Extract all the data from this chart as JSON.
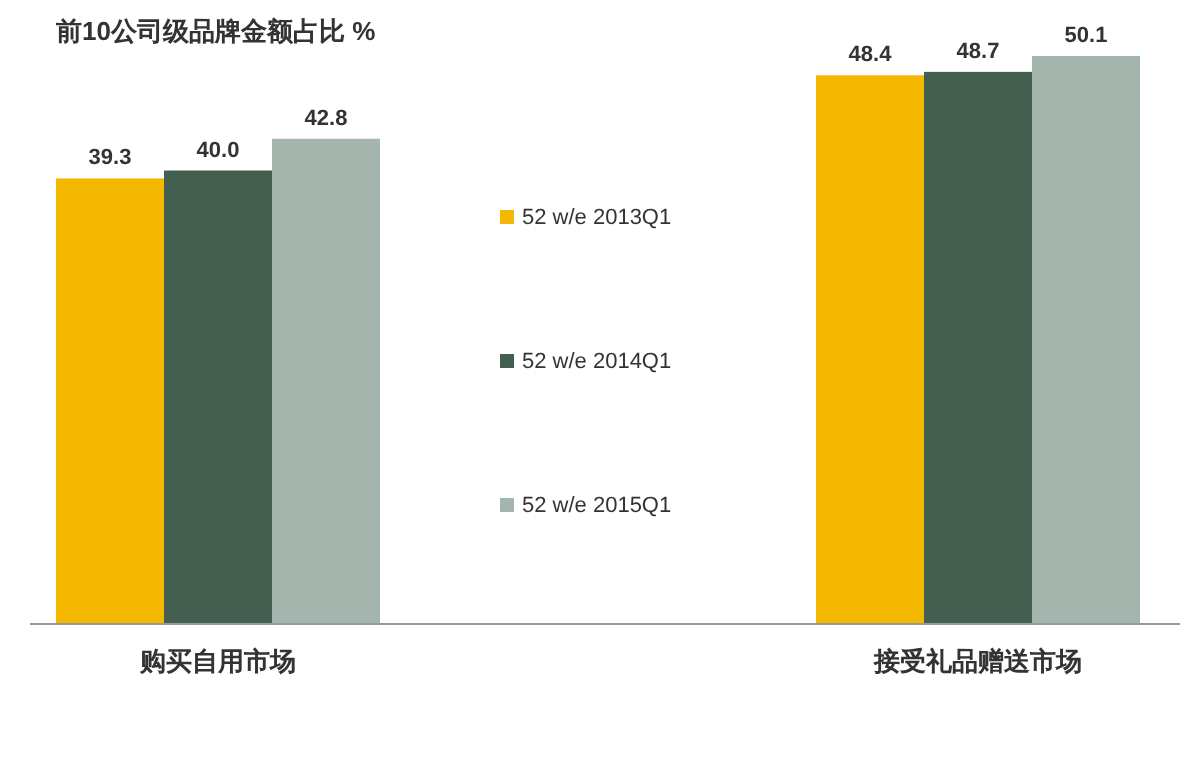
{
  "chart_data": {
    "type": "bar",
    "title": "前10公司级品牌金额占比 %",
    "categories": [
      "购买自用市场",
      "接受礼品赠送市场"
    ],
    "series": [
      {
        "name": "52 w/e 2013Q1",
        "color": "#f5b800",
        "values": [
          39.3,
          48.4
        ],
        "value_labels": [
          "39.3",
          "48.4"
        ]
      },
      {
        "name": "52 w/e 2014Q1",
        "color": "#445e4f",
        "values": [
          40.0,
          48.7
        ],
        "value_labels": [
          "40.0",
          "48.7"
        ]
      },
      {
        "name": "52 w/e 2015Q1",
        "color": "#a3b5ac",
        "values": [
          42.8,
          50.1
        ],
        "value_labels": [
          "42.8",
          "50.1"
        ]
      }
    ],
    "legend": "center"
  }
}
